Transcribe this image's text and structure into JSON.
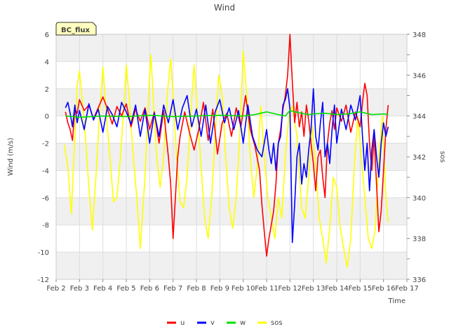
{
  "chart_data": {
    "type": "line",
    "title": "Wind",
    "badge": "BC_flux",
    "xlabel": "Time",
    "ylabel_left": "Wind (m/s)",
    "ylabel_right": "sos",
    "x_range": [
      2,
      17
    ],
    "x_ticks": [
      2,
      3,
      4,
      5,
      6,
      7,
      8,
      9,
      10,
      11,
      12,
      13,
      14,
      15,
      16,
      17
    ],
    "x_tick_labels": [
      "Feb 2",
      "Feb 3",
      "Feb 4",
      "Feb 5",
      "Feb 6",
      "Feb 7",
      "Feb 8",
      "Feb 9",
      "Feb 10",
      "Feb 11",
      "Feb 12",
      "Feb 13",
      "Feb 14",
      "Feb 15",
      "Feb 16",
      "Feb 17"
    ],
    "ylim_left": [
      -12,
      6
    ],
    "y_ticks_left": [
      -12,
      -10,
      -8,
      -6,
      -4,
      -2,
      0,
      2,
      4,
      6
    ],
    "ylim_right": [
      336,
      348
    ],
    "y_ticks_right": [
      336,
      338,
      340,
      342,
      344,
      346,
      348
    ],
    "grid": true,
    "legend_position": "bottom-center",
    "series": [
      {
        "name": "u",
        "color": "#ff0000",
        "axis": "left",
        "x": [
          2.4,
          2.5,
          2.6,
          2.7,
          2.8,
          2.9,
          3.0,
          3.2,
          3.4,
          3.6,
          3.8,
          4.0,
          4.2,
          4.4,
          4.6,
          4.8,
          5.0,
          5.2,
          5.4,
          5.6,
          5.8,
          6.0,
          6.2,
          6.4,
          6.6,
          6.8,
          6.9,
          7.0,
          7.1,
          7.2,
          7.3,
          7.5,
          7.7,
          7.9,
          8.1,
          8.3,
          8.5,
          8.7,
          8.9,
          9.1,
          9.3,
          9.5,
          9.7,
          9.9,
          10.1,
          10.3,
          10.5,
          10.7,
          10.8,
          10.9,
          11.0,
          11.1,
          11.2,
          11.3,
          11.4,
          11.5,
          11.6,
          11.7,
          11.8,
          11.9,
          12.0,
          12.1,
          12.2,
          12.3,
          12.4,
          12.5,
          12.6,
          12.7,
          12.8,
          12.9,
          13.0,
          13.1,
          13.2,
          13.3,
          13.4,
          13.5,
          13.6,
          13.7,
          13.8,
          13.9,
          14.0,
          14.2,
          14.4,
          14.6,
          14.8,
          15.0,
          15.1,
          15.2,
          15.3,
          15.4,
          15.5,
          15.6,
          15.7,
          15.8,
          15.9,
          16.0,
          16.1,
          16.2
        ],
        "y": [
          0.3,
          -0.5,
          -1.0,
          -1.8,
          0.5,
          0.2,
          1.2,
          0.4,
          0.8,
          -0.2,
          0.6,
          1.4,
          0.5,
          -0.6,
          0.7,
          0.0,
          0.9,
          -0.8,
          0.5,
          -0.4,
          0.6,
          -1.0,
          0.3,
          -2.0,
          0.4,
          -3.0,
          -5.0,
          -9.0,
          -6.0,
          -3.0,
          -1.5,
          0.3,
          -1.2,
          -2.5,
          -1.0,
          1.0,
          -1.8,
          0.5,
          -2.8,
          -0.5,
          0.2,
          -1.5,
          0.6,
          -0.8,
          1.5,
          -1.0,
          -2.2,
          -4.0,
          -6.5,
          -8.5,
          -10.3,
          -9.0,
          -8.0,
          -7.0,
          -5.0,
          -2.0,
          -1.0,
          0.5,
          1.5,
          3.0,
          6.0,
          2.5,
          -0.5,
          1.0,
          -0.8,
          0.3,
          -1.5,
          0.8,
          -0.3,
          -2.0,
          -3.5,
          -5.5,
          -3.0,
          -2.5,
          -4.5,
          -6.0,
          -2.0,
          -0.5,
          0.4,
          -1.0,
          0.6,
          -0.4,
          0.8,
          -1.2,
          0.3,
          -0.8,
          1.0,
          2.4,
          1.5,
          -2.0,
          -4.0,
          -1.5,
          -5.0,
          -8.5,
          -7.0,
          -4.0,
          -1.0,
          0.8
        ]
      },
      {
        "name": "v",
        "color": "#0000ff",
        "axis": "left",
        "x": [
          2.4,
          2.5,
          2.6,
          2.7,
          2.8,
          2.9,
          3.0,
          3.2,
          3.4,
          3.6,
          3.8,
          4.0,
          4.2,
          4.4,
          4.6,
          4.8,
          5.0,
          5.2,
          5.4,
          5.6,
          5.8,
          6.0,
          6.2,
          6.4,
          6.6,
          6.8,
          7.0,
          7.2,
          7.4,
          7.6,
          7.8,
          8.0,
          8.2,
          8.4,
          8.6,
          8.8,
          9.0,
          9.2,
          9.4,
          9.6,
          9.8,
          10.0,
          10.2,
          10.4,
          10.6,
          10.8,
          11.0,
          11.1,
          11.2,
          11.3,
          11.4,
          11.5,
          11.6,
          11.7,
          11.8,
          11.9,
          12.0,
          12.1,
          12.2,
          12.3,
          12.4,
          12.5,
          12.6,
          12.7,
          12.8,
          12.9,
          13.0,
          13.1,
          13.2,
          13.3,
          13.4,
          13.5,
          13.6,
          13.7,
          13.8,
          13.9,
          14.0,
          14.2,
          14.4,
          14.6,
          14.8,
          15.0,
          15.1,
          15.2,
          15.3,
          15.4,
          15.5,
          15.6,
          15.7,
          15.8,
          15.9,
          16.0,
          16.1,
          16.2
        ],
        "y": [
          0.6,
          1.0,
          0.2,
          -0.8,
          0.8,
          -0.5,
          0.4,
          -1.0,
          0.9,
          -0.3,
          0.5,
          -1.2,
          0.7,
          0.1,
          -0.8,
          1.0,
          0.3,
          -0.6,
          0.8,
          -1.5,
          0.5,
          -2.0,
          0.2,
          -1.5,
          0.8,
          -0.5,
          1.2,
          -1.0,
          0.6,
          1.5,
          -0.8,
          0.5,
          -1.5,
          0.8,
          -2.0,
          0.3,
          1.2,
          -0.5,
          0.6,
          -1.0,
          0.4,
          -2.0,
          0.8,
          -1.5,
          -2.5,
          -3.0,
          -1.0,
          -2.5,
          -3.5,
          -2.0,
          -4.0,
          -2.0,
          -1.5,
          0.8,
          1.2,
          2.0,
          0.5,
          -9.3,
          -6.5,
          -3.0,
          -2.0,
          -5.0,
          -3.5,
          -4.5,
          -2.5,
          -1.0,
          2.0,
          -1.5,
          -2.5,
          -0.5,
          1.0,
          -3.0,
          -2.0,
          -3.5,
          -1.0,
          0.8,
          -2.0,
          0.5,
          -1.0,
          0.8,
          -0.3,
          1.5,
          -1.5,
          -4.0,
          -2.0,
          -5.5,
          -2.5,
          -1.0,
          -3.0,
          -4.5,
          -2.0,
          -0.5,
          -1.5,
          -0.8
        ]
      },
      {
        "name": "w",
        "color": "#00e000",
        "axis": "left",
        "x": [
          2.4,
          3.0,
          4.0,
          5.0,
          6.0,
          7.0,
          8.0,
          9.0,
          10.0,
          10.5,
          11.0,
          11.5,
          11.8,
          12.0,
          12.2,
          12.5,
          12.8,
          13.0,
          13.5,
          14.0,
          14.5,
          15.0,
          15.5,
          16.0,
          16.2
        ],
        "y": [
          0.0,
          -0.1,
          0.0,
          -0.05,
          0.05,
          -0.05,
          0.0,
          0.05,
          0.0,
          0.1,
          0.3,
          0.1,
          0.0,
          0.4,
          0.3,
          0.2,
          0.1,
          0.15,
          0.2,
          0.1,
          0.15,
          0.3,
          0.1,
          0.15,
          0.1
        ]
      },
      {
        "name": "sos",
        "color": "#ffff00",
        "axis": "right",
        "x": [
          2.35,
          2.5,
          2.65,
          2.8,
          2.9,
          3.0,
          3.1,
          3.25,
          3.4,
          3.55,
          3.7,
          3.85,
          4.0,
          4.15,
          4.3,
          4.45,
          4.6,
          4.75,
          4.9,
          5.0,
          5.15,
          5.3,
          5.45,
          5.6,
          5.8,
          5.95,
          6.05,
          6.15,
          6.3,
          6.45,
          6.6,
          6.75,
          6.9,
          7.0,
          7.15,
          7.3,
          7.45,
          7.6,
          7.75,
          7.9,
          8.05,
          8.2,
          8.35,
          8.5,
          8.65,
          8.8,
          8.95,
          9.1,
          9.25,
          9.4,
          9.55,
          9.7,
          9.85,
          10.0,
          10.15,
          10.3,
          10.45,
          10.6,
          10.75,
          10.9,
          11.05,
          11.2,
          11.35,
          11.5,
          11.65,
          11.8,
          11.95,
          12.1,
          12.3,
          12.5,
          12.65,
          12.8,
          12.95,
          13.1,
          13.25,
          13.4,
          13.55,
          13.7,
          13.85,
          14.0,
          14.15,
          14.3,
          14.45,
          14.6,
          14.75,
          14.9,
          15.05,
          15.2,
          15.35,
          15.5,
          15.65,
          15.8,
          15.95,
          16.1,
          16.2
        ],
        "y": [
          342.6,
          341.5,
          339.2,
          343.0,
          345.5,
          346.2,
          345.0,
          343.0,
          340.5,
          338.4,
          341.0,
          344.0,
          346.4,
          344.0,
          342.0,
          339.8,
          340.0,
          342.0,
          344.5,
          346.5,
          344.5,
          342.0,
          340.0,
          337.5,
          341.0,
          345.0,
          347.0,
          345.0,
          342.0,
          340.5,
          342.0,
          345.0,
          346.8,
          345.0,
          342.0,
          339.8,
          339.5,
          341.0,
          344.0,
          346.5,
          344.0,
          341.5,
          339.0,
          338.0,
          340.0,
          343.0,
          346.0,
          345.0,
          342.0,
          339.5,
          338.5,
          340.0,
          343.0,
          347.2,
          345.0,
          342.0,
          340.0,
          341.5,
          344.5,
          342.0,
          340.0,
          339.0,
          338.0,
          340.0,
          339.0,
          342.0,
          344.0,
          344.5,
          343.0,
          339.5,
          339.0,
          341.0,
          343.5,
          341.5,
          339.0,
          338.0,
          336.8,
          338.5,
          341.0,
          340.5,
          338.5,
          337.5,
          336.6,
          338.0,
          341.5,
          344.0,
          342.0,
          340.0,
          338.0,
          337.5,
          338.5,
          342.0,
          344.0,
          340.0,
          338.8
        ]
      }
    ]
  }
}
